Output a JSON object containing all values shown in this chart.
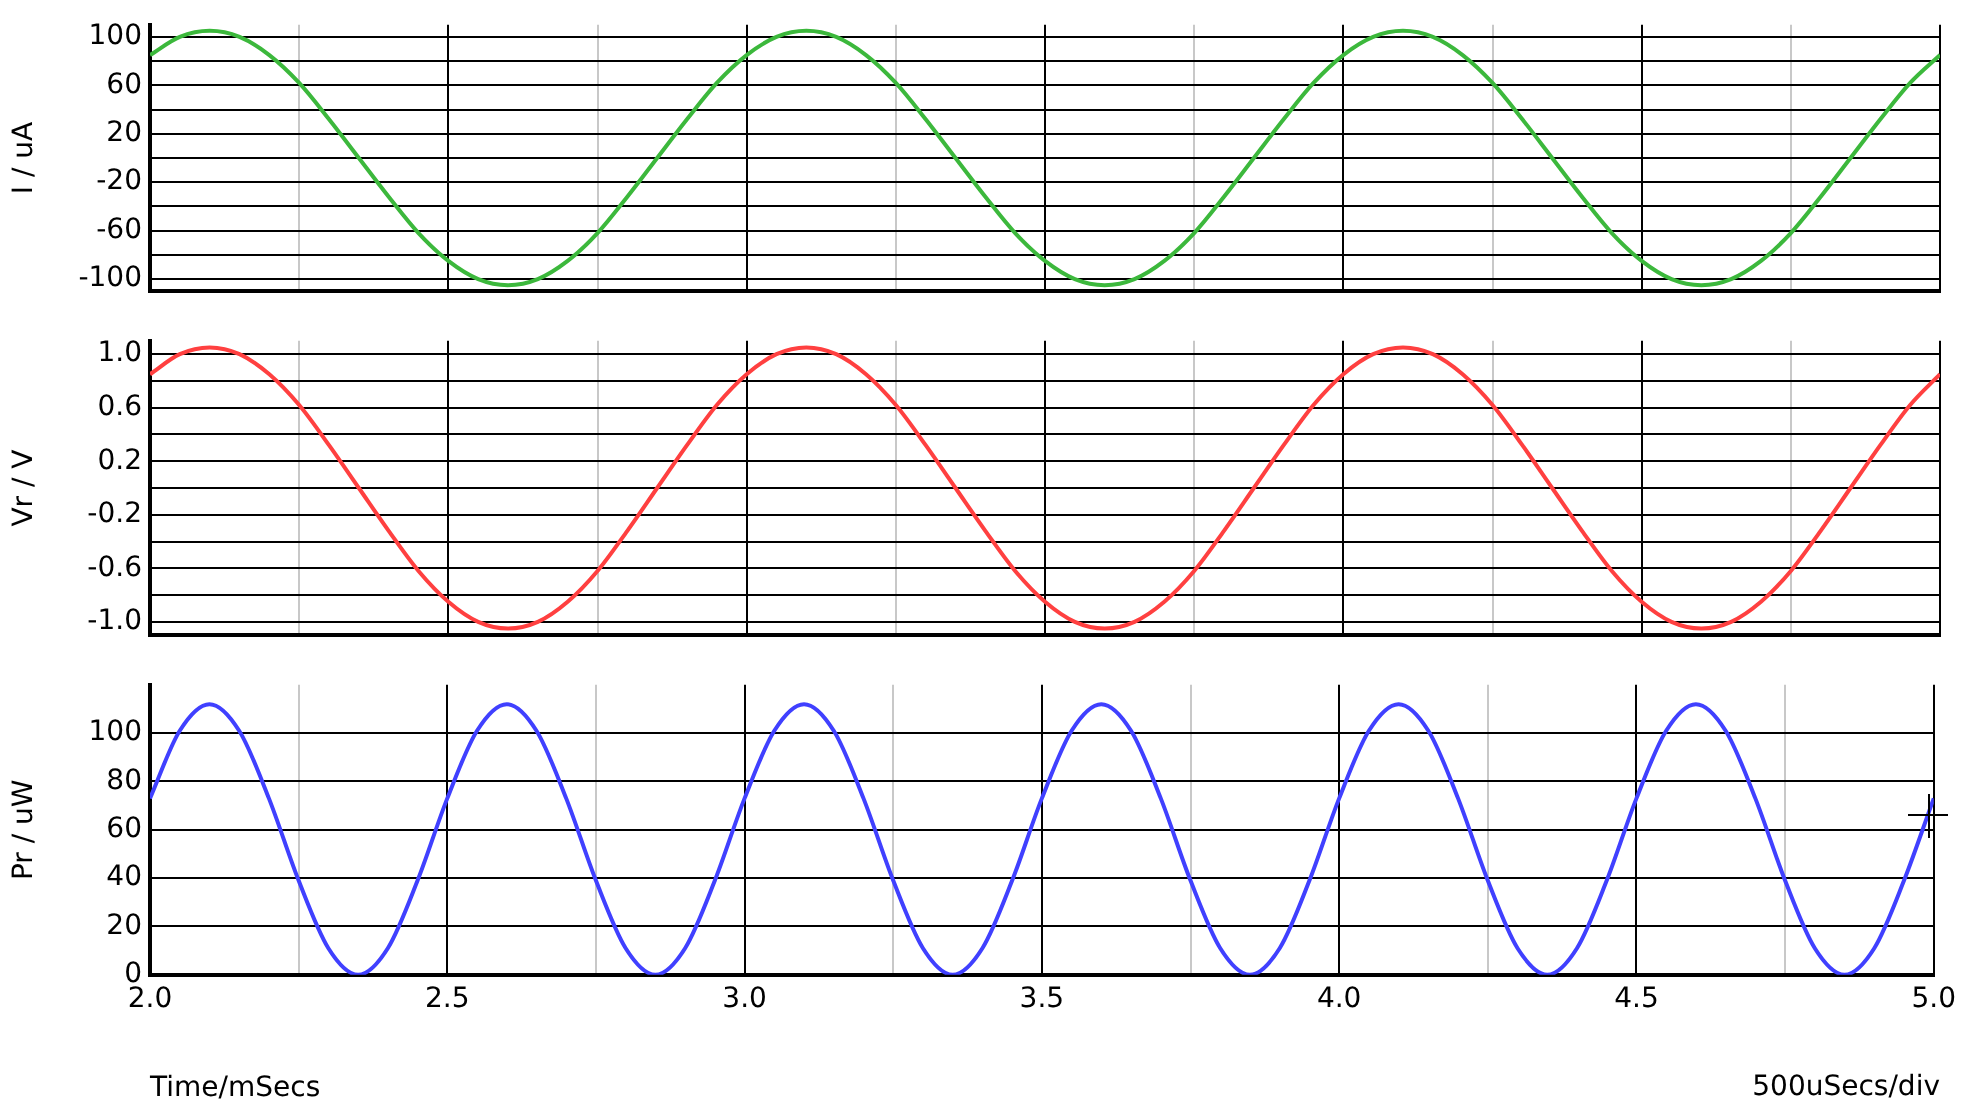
{
  "chart_data": [
    {
      "type": "line",
      "ylabel": "I / uA",
      "xticks": [
        2,
        {
          "value": 2.25,
          "label": null
        },
        2.5,
        {
          "value": 2.75,
          "label": null
        },
        3,
        {
          "value": 3.25,
          "label": null
        },
        3.5,
        {
          "value": 3.75,
          "label": null
        },
        4,
        {
          "value": 4.25,
          "label": null
        },
        4.5,
        {
          "value": 4.75,
          "label": null
        },
        5
      ],
      "x": [
        2,
        2.05,
        2.1,
        2.15,
        2.2,
        2.25,
        2.3,
        2.35,
        2.4,
        2.45,
        2.5,
        2.55,
        2.6,
        2.65,
        2.7,
        2.75,
        2.8,
        2.85,
        2.9,
        2.95,
        3,
        3.05,
        3.1,
        3.15,
        3.2,
        3.25,
        3.3,
        3.35,
        3.4,
        3.45,
        3.5,
        3.55,
        3.6,
        3.65,
        3.7,
        3.75,
        3.8,
        3.85,
        3.9,
        3.95,
        4,
        4.05,
        4.1,
        4.15,
        4.2,
        4.25,
        4.3,
        4.35,
        4.4,
        4.45,
        4.5,
        4.55,
        4.6,
        4.65,
        4.7,
        4.75,
        4.8,
        4.85,
        4.9,
        4.95,
        5
      ],
      "series": [
        {
          "color": "#3cb83c",
          "values": [
            85,
            100,
            105,
            100,
            85,
            62,
            32,
            0,
            -32,
            -62,
            -85,
            -100,
            -105,
            -100,
            -85,
            -62,
            -32,
            0,
            32,
            62,
            85,
            100,
            105,
            100,
            85,
            62,
            32,
            0,
            -32,
            -62,
            -85,
            -100,
            -105,
            -100,
            -85,
            -62,
            -32,
            0,
            32,
            62,
            85,
            100,
            105,
            100,
            85,
            62,
            32,
            0,
            -32,
            -62,
            -85,
            -100,
            -105,
            -100,
            -85,
            -62,
            -32,
            0,
            32,
            62,
            85
          ]
        }
      ],
      "xlim": [
        2,
        5
      ],
      "ylim": [
        -110,
        110
      ],
      "yticks": [
        -100,
        {
          "value": -80,
          "label": null
        },
        -60,
        {
          "value": -40,
          "label": null
        },
        -20,
        {
          "value": 0,
          "label": null
        },
        20,
        {
          "value": 40,
          "label": null
        },
        60,
        {
          "value": 80,
          "label": null
        },
        100
      ],
      "grid": true,
      "tick_labels": "y"
    },
    {
      "type": "line",
      "ylabel": "Vr / V",
      "xticks": [
        2,
        {
          "value": 2.25,
          "label": null
        },
        2.5,
        {
          "value": 2.75,
          "label": null
        },
        3,
        {
          "value": 3.25,
          "label": null
        },
        3.5,
        {
          "value": 3.75,
          "label": null
        },
        4,
        {
          "value": 4.25,
          "label": null
        },
        4.5,
        {
          "value": 4.75,
          "label": null
        },
        5
      ],
      "x": [
        2,
        2.05,
        2.1,
        2.15,
        2.2,
        2.25,
        2.3,
        2.35,
        2.4,
        2.45,
        2.5,
        2.55,
        2.6,
        2.65,
        2.7,
        2.75,
        2.8,
        2.85,
        2.9,
        2.95,
        3,
        3.05,
        3.1,
        3.15,
        3.2,
        3.25,
        3.3,
        3.35,
        3.4,
        3.45,
        3.5,
        3.55,
        3.6,
        3.65,
        3.7,
        3.75,
        3.8,
        3.85,
        3.9,
        3.95,
        4,
        4.05,
        4.1,
        4.15,
        4.2,
        4.25,
        4.3,
        4.35,
        4.4,
        4.45,
        4.5,
        4.55,
        4.6,
        4.65,
        4.7,
        4.75,
        4.8,
        4.85,
        4.9,
        4.95,
        5
      ],
      "series": [
        {
          "color": "#ff4040",
          "values": [
            0.85,
            1.0,
            1.05,
            1.0,
            0.85,
            0.62,
            0.32,
            0,
            -0.32,
            -0.62,
            -0.85,
            -1.0,
            -1.05,
            -1.0,
            -0.85,
            -0.62,
            -0.32,
            0,
            0.32,
            0.62,
            0.85,
            1.0,
            1.05,
            1.0,
            0.85,
            0.62,
            0.32,
            0,
            -0.32,
            -0.62,
            -0.85,
            -1.0,
            -1.05,
            -1.0,
            -0.85,
            -0.62,
            -0.32,
            0,
            0.32,
            0.62,
            0.85,
            1.0,
            1.05,
            1.0,
            0.85,
            0.62,
            0.32,
            0,
            -0.32,
            -0.62,
            -0.85,
            -1.0,
            -1.05,
            -1.0,
            -0.85,
            -0.62,
            -0.32,
            0,
            0.32,
            0.62,
            0.85
          ]
        }
      ],
      "xlim": [
        2,
        5
      ],
      "ylim": [
        -1.1,
        1.1
      ],
      "yticks": [
        {
          "value": -1,
          "label": "-1.0"
        },
        {
          "value": -0.8,
          "label": null
        },
        -0.6,
        {
          "value": -0.4,
          "label": null
        },
        -0.2,
        {
          "value": 0,
          "label": null
        },
        0.2,
        {
          "value": 0.4,
          "label": null
        },
        0.6,
        {
          "value": 0.8,
          "label": null
        },
        {
          "value": 1,
          "label": "1.0"
        }
      ],
      "grid": true,
      "tick_labels": "y"
    },
    {
      "type": "line",
      "ylabel": "Pr / uW",
      "xlabel": "Time/mSecs",
      "annotations": [
        "500uSecs/div"
      ],
      "x": [
        2,
        2.05,
        2.1,
        2.15,
        2.2,
        2.25,
        2.3,
        2.35,
        2.4,
        2.45,
        2.5,
        2.55,
        2.6,
        2.65,
        2.7,
        2.75,
        2.8,
        2.85,
        2.9,
        2.95,
        3,
        3.05,
        3.1,
        3.15,
        3.2,
        3.25,
        3.3,
        3.35,
        3.4,
        3.45,
        3.5,
        3.55,
        3.6,
        3.65,
        3.7,
        3.75,
        3.8,
        3.85,
        3.9,
        3.95,
        4,
        4.05,
        4.1,
        4.15,
        4.2,
        4.25,
        4.3,
        4.35,
        4.4,
        4.45,
        4.5,
        4.55,
        4.6,
        4.65,
        4.7,
        4.75,
        4.8,
        4.85,
        4.9,
        4.95,
        5
      ],
      "series": [
        {
          "color": "#4040ff",
          "values": [
            73,
            101,
            112,
            101,
            73,
            39,
            11,
            0,
            11,
            39,
            73,
            101,
            112,
            101,
            73,
            39,
            11,
            0,
            11,
            39,
            73,
            101,
            112,
            101,
            73,
            39,
            11,
            0,
            11,
            39,
            73,
            101,
            112,
            101,
            73,
            39,
            11,
            0,
            11,
            39,
            73,
            101,
            112,
            101,
            73,
            39,
            11,
            0,
            11,
            39,
            73,
            101,
            112,
            101,
            73,
            39,
            11,
            0,
            11,
            39,
            73
          ]
        }
      ],
      "xlim": [
        2,
        5
      ],
      "xticks": [
        {
          "value": 2,
          "label": "2.0"
        },
        {
          "value": 2.25,
          "label": null
        },
        {
          "value": 2.5,
          "label": "2.5"
        },
        {
          "value": 2.75,
          "label": null
        },
        {
          "value": 3,
          "label": "3.0"
        },
        {
          "value": 3.25,
          "label": null
        },
        {
          "value": 3.5,
          "label": "3.5"
        },
        {
          "value": 3.75,
          "label": null
        },
        {
          "value": 4,
          "label": "4.0"
        },
        {
          "value": 4.25,
          "label": null
        },
        {
          "value": 4.5,
          "label": "4.5"
        },
        {
          "value": 4.75,
          "label": null
        },
        {
          "value": 5,
          "label": "5.0"
        }
      ],
      "ylim": [
        0,
        120
      ],
      "yticks": [
        0,
        20,
        40,
        60,
        80,
        100
      ],
      "grid": true
    }
  ]
}
